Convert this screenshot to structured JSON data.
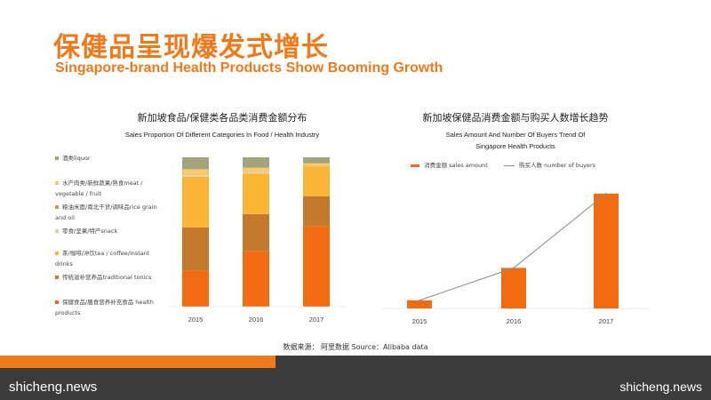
{
  "header": {
    "title_cn": "保健品呈现爆发式增长",
    "title_en": "Singapore-brand Health Products Show Booming Growth"
  },
  "left_chart": {
    "title_cn": "新加坡食品/保健类各品类消费金额分布",
    "subtitle_en": "Sales Proportion Of Different Categories In Food / Health Industry"
  },
  "right_chart": {
    "title_cn": "新加坡保健品消费金额与购买人数增长趋势",
    "subtitle_en_line1": "Sales Amount And Number Of Buyers Trend Of",
    "subtitle_en_line2": "Singapore Health Products",
    "legend_bar": "消费金额 sales amount",
    "legend_line": "购买人数 number of buyers"
  },
  "source_text": "数据来源：  阿里数据  Source：Alibaba data",
  "watermarks": {
    "left": "shicheng.news",
    "right": "shicheng.news"
  },
  "colors": {
    "accent": "#f07a1a",
    "liquor": "#a4a47c",
    "meat": "#f7c96e",
    "grain": "#c89a4e",
    "snack": "#ddd4a8",
    "tea": "#fbb535",
    "traditional": "#c47a2c",
    "health": "#f26b11",
    "line": "#888888"
  },
  "chart_data": [
    {
      "type": "bar",
      "stacked": true,
      "normalized": true,
      "title": "新加坡食品/保健类各品类消费金额分布",
      "subtitle": "Sales Proportion Of Different Categories In Food / Health Industry",
      "categories": [
        "2015",
        "2016",
        "2017"
      ],
      "series": [
        {
          "name": "保健食品/膳食营养补充食品 health products",
          "color": "#f26b11",
          "values": [
            0.24,
            0.37,
            0.54
          ]
        },
        {
          "name": "传统滋补营养品traditional tonics",
          "color": "#c47a2c",
          "values": [
            0.29,
            0.25,
            0.2
          ]
        },
        {
          "name": "茶/咖啡/冲饮tea / coffee/instant drinks",
          "color": "#fbb535",
          "values": [
            0.34,
            0.27,
            0.2
          ]
        },
        {
          "name": "零食/坚果/特产snack",
          "color": "#ddd4a8",
          "values": [
            0.01,
            0.01,
            0.0
          ]
        },
        {
          "name": "粮油米面/南北干货/调味品rice grain and oil",
          "color": "#c89a4e",
          "values": [
            0.0,
            0.0,
            0.0
          ]
        },
        {
          "name": "水产肉类/新鲜蔬果/熟食meat / vegetable / fruit",
          "color": "#f7c96e",
          "values": [
            0.04,
            0.03,
            0.02
          ]
        },
        {
          "name": "酒类liquor",
          "color": "#a4a47c",
          "values": [
            0.08,
            0.07,
            0.04
          ]
        }
      ],
      "legend_placement": "left"
    },
    {
      "type": "bar",
      "title": "新加坡保健品消费金额与购买人数增长趋势",
      "subtitle": "Sales Amount And Number Of Buyers Trend Of Singapore Health Products",
      "categories": [
        "2015",
        "2016",
        "2017"
      ],
      "series": [
        {
          "name": "消费金额 sales amount",
          "type": "bar",
          "color": "#f26b11",
          "values": [
            6,
            30,
            85
          ]
        },
        {
          "name": "购买人数 number of buyers",
          "type": "line",
          "color": "#888888",
          "values": [
            6,
            30,
            85
          ]
        }
      ],
      "ylim": [
        0,
        100
      ],
      "legend_placement": "top"
    }
  ]
}
